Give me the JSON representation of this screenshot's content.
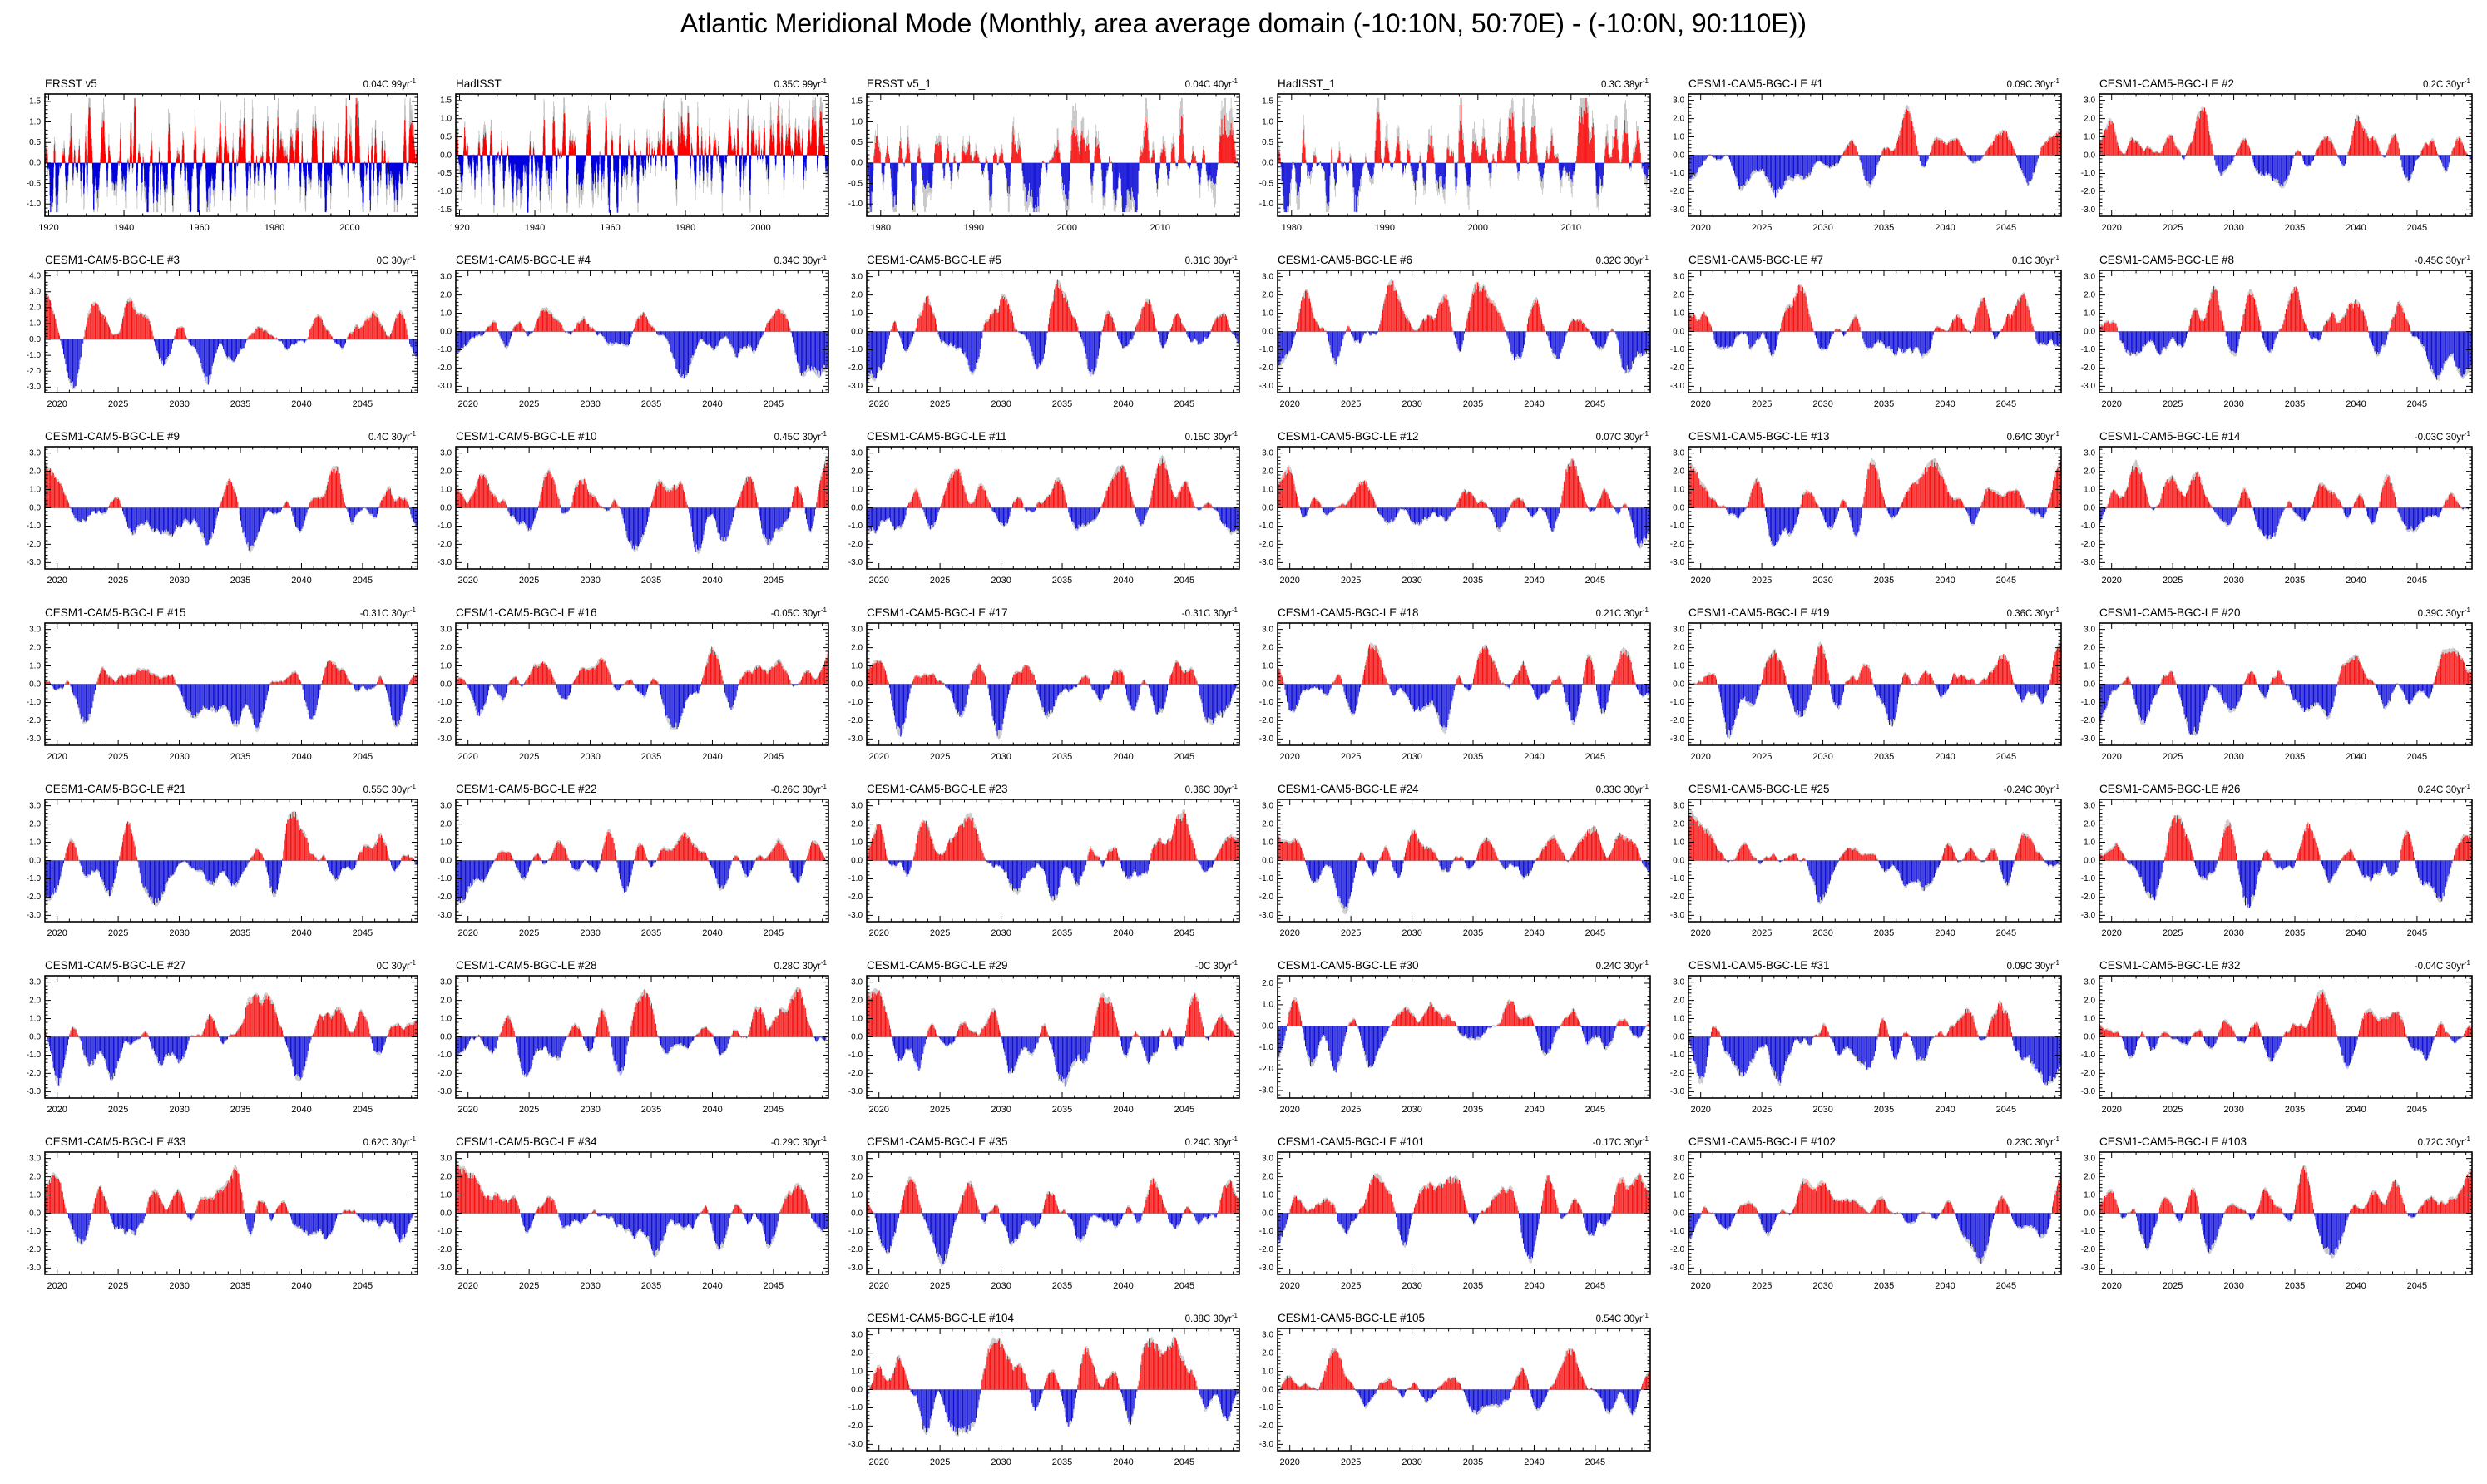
{
  "page_title": "Atlantic Meridional Mode (Monthly, area average domain (-10:10N, 50:70E) - (-10:0N, 90:110E))",
  "colors": {
    "positive": "#ff0000",
    "negative": "#0000dd",
    "envelope": "#bdbdbd",
    "axis": "#000000",
    "zero_line": "#9e9e9e",
    "text": "#000000"
  },
  "trend_sup": "-1",
  "chart_data": {
    "type": "bar",
    "subtype": "monthly-anomaly-bar-panels",
    "grid": {
      "columns": 6,
      "rows": 8
    },
    "x_axis_kinds": {
      "obs_long": {
        "xlim": [
          1919.0,
          2018.0
        ],
        "xticks": [
          1920,
          1940,
          1960,
          1980,
          2000
        ],
        "x_minor_step": 5
      },
      "obs_short": {
        "xlim": [
          1978.5,
          2018.5
        ],
        "xticks": [
          1980,
          1990,
          2000,
          2010
        ],
        "x_minor_step": 2
      },
      "model": {
        "xlim": [
          2019.0,
          2049.5
        ],
        "xticks": [
          2020,
          2025,
          2030,
          2035,
          2040,
          2045
        ],
        "x_minor_step": 1
      }
    },
    "y_axis_kinds": {
      "obs": {
        "ylim": [
          -1.3,
          1.68
        ],
        "yticks": [
          1.5,
          1.0,
          0.5,
          0.0,
          -0.5,
          -1.0
        ],
        "y_minor_step": 0.1
      },
      "obs_sym": {
        "ylim": [
          -1.68,
          1.68
        ],
        "yticks": [
          1.5,
          1.0,
          0.5,
          0.0,
          -0.5,
          -1.0,
          -1.5
        ],
        "y_minor_step": 0.1
      },
      "model": {
        "ylim": [
          -3.35,
          3.35
        ],
        "yticks": [
          3.0,
          2.0,
          1.0,
          0.0,
          -1.0,
          -2.0,
          -3.0
        ],
        "y_minor_step": 0.2
      },
      "model_hi": {
        "ylim": [
          -3.35,
          4.35
        ],
        "yticks": [
          4.0,
          3.0,
          2.0,
          1.0,
          0.0,
          -1.0,
          -2.0,
          -3.0
        ],
        "y_minor_step": 0.2
      },
      "model_lo": {
        "ylim": [
          -3.35,
          2.35
        ],
        "yticks": [
          2.0,
          1.0,
          0.0,
          -1.0,
          -2.0,
          -3.0
        ],
        "y_minor_step": 0.2
      }
    },
    "panels": [
      {
        "title": "ERSST v5",
        "trend": "0.04C 99yr",
        "trend_c": 0.04,
        "row": 0,
        "col": 0,
        "x": "obs_long",
        "y": "obs",
        "style": "obs",
        "seed": 101,
        "amp": 1.5
      },
      {
        "title": "HadISST",
        "trend": "0.35C 99yr",
        "trend_c": 0.35,
        "row": 0,
        "col": 1,
        "x": "obs_long",
        "y": "obs_sym",
        "style": "obs",
        "seed": 138,
        "amp": 1.5
      },
      {
        "title": "ERSST v5_1",
        "trend": "0.04C 40yr",
        "trend_c": 0.04,
        "row": 0,
        "col": 2,
        "x": "obs_short",
        "y": "obs",
        "style": "obs",
        "seed": 175,
        "amp": 1.5
      },
      {
        "title": "HadISST_1",
        "trend": "0.3C 38yr",
        "trend_c": 0.3,
        "row": 0,
        "col": 3,
        "x": "obs_short",
        "y": "obs",
        "style": "obs",
        "seed": 212,
        "amp": 1.45
      },
      {
        "title": "CESM1-CAM5-BGC-LE #1",
        "trend": "0.09C 30yr",
        "trend_c": 0.09,
        "row": 0,
        "col": 4,
        "x": "model",
        "y": "model",
        "style": "model",
        "seed": 249,
        "amp": 2.5
      },
      {
        "title": "CESM1-CAM5-BGC-LE #2",
        "trend": "0.2C 30yr",
        "trend_c": 0.2,
        "row": 0,
        "col": 5,
        "x": "model",
        "y": "model",
        "style": "model",
        "seed": 286,
        "amp": 2.5
      },
      {
        "title": "CESM1-CAM5-BGC-LE #3",
        "trend": "0C 30yr",
        "trend_c": 0.0,
        "row": 1,
        "col": 0,
        "x": "model",
        "y": "model_hi",
        "style": "model",
        "seed": 323,
        "amp": 2.9
      },
      {
        "title": "CESM1-CAM5-BGC-LE #4",
        "trend": "0.34C 30yr",
        "trend_c": 0.34,
        "row": 1,
        "col": 1,
        "x": "model",
        "y": "model",
        "style": "model",
        "seed": 360,
        "amp": 2.5
      },
      {
        "title": "CESM1-CAM5-BGC-LE #5",
        "trend": "0.31C 30yr",
        "trend_c": 0.31,
        "row": 1,
        "col": 2,
        "x": "model",
        "y": "model",
        "style": "model",
        "seed": 397,
        "amp": 2.6
      },
      {
        "title": "CESM1-CAM5-BGC-LE #6",
        "trend": "0.32C 30yr",
        "trend_c": 0.32,
        "row": 1,
        "col": 3,
        "x": "model",
        "y": "model",
        "style": "model",
        "seed": 434,
        "amp": 2.7
      },
      {
        "title": "CESM1-CAM5-BGC-LE #7",
        "trend": "0.1C 30yr",
        "trend_c": 0.1,
        "row": 1,
        "col": 4,
        "x": "model",
        "y": "model",
        "style": "model",
        "seed": 471,
        "amp": 2.4
      },
      {
        "title": "CESM1-CAM5-BGC-LE #8",
        "trend": "-0.45C 30yr",
        "trend_c": -0.45,
        "row": 1,
        "col": 5,
        "x": "model",
        "y": "model",
        "style": "model",
        "seed": 508,
        "amp": 2.3
      },
      {
        "title": "CESM1-CAM5-BGC-LE #9",
        "trend": "0.4C 30yr",
        "trend_c": 0.4,
        "row": 2,
        "col": 0,
        "x": "model",
        "y": "model",
        "style": "model",
        "seed": 545,
        "amp": 2.4
      },
      {
        "title": "CESM1-CAM5-BGC-LE #10",
        "trend": "0.45C 30yr",
        "trend_c": 0.45,
        "row": 2,
        "col": 1,
        "x": "model",
        "y": "model",
        "style": "model",
        "seed": 582,
        "amp": 2.4
      },
      {
        "title": "CESM1-CAM5-BGC-LE #11",
        "trend": "0.15C 30yr",
        "trend_c": 0.15,
        "row": 2,
        "col": 2,
        "x": "model",
        "y": "model",
        "style": "model",
        "seed": 619,
        "amp": 2.6
      },
      {
        "title": "CESM1-CAM5-BGC-LE #12",
        "trend": "0.07C 30yr",
        "trend_c": 0.07,
        "row": 2,
        "col": 3,
        "x": "model",
        "y": "model",
        "style": "model",
        "seed": 656,
        "amp": 2.5
      },
      {
        "title": "CESM1-CAM5-BGC-LE #13",
        "trend": "0.64C 30yr",
        "trend_c": 0.64,
        "row": 2,
        "col": 4,
        "x": "model",
        "y": "model",
        "style": "model",
        "seed": 693,
        "amp": 2.7
      },
      {
        "title": "CESM1-CAM5-BGC-LE #14",
        "trend": "-0.03C 30yr",
        "trend_c": -0.03,
        "row": 2,
        "col": 5,
        "x": "model",
        "y": "model",
        "style": "model",
        "seed": 730,
        "amp": 2.4
      },
      {
        "title": "CESM1-CAM5-BGC-LE #15",
        "trend": "-0.31C 30yr",
        "trend_c": -0.31,
        "row": 3,
        "col": 0,
        "x": "model",
        "y": "model",
        "style": "model",
        "seed": 767,
        "amp": 2.4
      },
      {
        "title": "CESM1-CAM5-BGC-LE #16",
        "trend": "-0.05C 30yr",
        "trend_c": -0.05,
        "row": 3,
        "col": 1,
        "x": "model",
        "y": "model",
        "style": "model",
        "seed": 804,
        "amp": 2.3
      },
      {
        "title": "CESM1-CAM5-BGC-LE #17",
        "trend": "-0.31C 30yr",
        "trend_c": -0.31,
        "row": 3,
        "col": 2,
        "x": "model",
        "y": "model",
        "style": "model",
        "seed": 841,
        "amp": 2.8
      },
      {
        "title": "CESM1-CAM5-BGC-LE #18",
        "trend": "0.21C 30yr",
        "trend_c": 0.21,
        "row": 3,
        "col": 3,
        "x": "model",
        "y": "model",
        "style": "model",
        "seed": 878,
        "amp": 2.5
      },
      {
        "title": "CESM1-CAM5-BGC-LE #19",
        "trend": "0.36C 30yr",
        "trend_c": 0.36,
        "row": 3,
        "col": 4,
        "x": "model",
        "y": "model",
        "style": "model",
        "seed": 915,
        "amp": 2.6
      },
      {
        "title": "CESM1-CAM5-BGC-LE #20",
        "trend": "0.39C 30yr",
        "trend_c": 0.39,
        "row": 3,
        "col": 5,
        "x": "model",
        "y": "model",
        "style": "model",
        "seed": 952,
        "amp": 2.5
      },
      {
        "title": "CESM1-CAM5-BGC-LE #21",
        "trend": "0.55C 30yr",
        "trend_c": 0.55,
        "row": 4,
        "col": 0,
        "x": "model",
        "y": "model",
        "style": "model",
        "seed": 989,
        "amp": 2.4
      },
      {
        "title": "CESM1-CAM5-BGC-LE #22",
        "trend": "-0.26C 30yr",
        "trend_c": -0.26,
        "row": 4,
        "col": 1,
        "x": "model",
        "y": "model",
        "style": "model",
        "seed": 1026,
        "amp": 2.3
      },
      {
        "title": "CESM1-CAM5-BGC-LE #23",
        "trend": "0.36C 30yr",
        "trend_c": 0.36,
        "row": 4,
        "col": 2,
        "x": "model",
        "y": "model",
        "style": "model",
        "seed": 1063,
        "amp": 2.5
      },
      {
        "title": "CESM1-CAM5-BGC-LE #24",
        "trend": "0.33C 30yr",
        "trend_c": 0.33,
        "row": 4,
        "col": 3,
        "x": "model",
        "y": "model",
        "style": "model",
        "seed": 1100,
        "amp": 2.6
      },
      {
        "title": "CESM1-CAM5-BGC-LE #25",
        "trend": "-0.24C 30yr",
        "trend_c": -0.24,
        "row": 4,
        "col": 4,
        "x": "model",
        "y": "model",
        "style": "model",
        "seed": 1137,
        "amp": 2.5
      },
      {
        "title": "CESM1-CAM5-BGC-LE #26",
        "trend": "0.24C 30yr",
        "trend_c": 0.24,
        "row": 4,
        "col": 5,
        "x": "model",
        "y": "model",
        "style": "model",
        "seed": 1174,
        "amp": 2.4
      },
      {
        "title": "CESM1-CAM5-BGC-LE #27",
        "trend": "0C 30yr",
        "trend_c": 0.0,
        "row": 5,
        "col": 0,
        "x": "model",
        "y": "model",
        "style": "model",
        "seed": 1211,
        "amp": 2.5
      },
      {
        "title": "CESM1-CAM5-BGC-LE #28",
        "trend": "0.28C 30yr",
        "trend_c": 0.28,
        "row": 5,
        "col": 1,
        "x": "model",
        "y": "model",
        "style": "model",
        "seed": 1248,
        "amp": 2.4
      },
      {
        "title": "CESM1-CAM5-BGC-LE #29",
        "trend": "-0C 30yr",
        "trend_c": 0.0,
        "row": 5,
        "col": 2,
        "x": "model",
        "y": "model",
        "style": "model",
        "seed": 1285,
        "amp": 2.5
      },
      {
        "title": "CESM1-CAM5-BGC-LE #30",
        "trend": "0.24C 30yr",
        "trend_c": 0.24,
        "row": 5,
        "col": 3,
        "x": "model",
        "y": "model_lo",
        "style": "model",
        "seed": 1322,
        "amp": 1.9
      },
      {
        "title": "CESM1-CAM5-BGC-LE #31",
        "trend": "0.09C 30yr",
        "trend_c": 0.09,
        "row": 5,
        "col": 4,
        "x": "model",
        "y": "model",
        "style": "model",
        "seed": 1359,
        "amp": 2.5
      },
      {
        "title": "CESM1-CAM5-BGC-LE #32",
        "trend": "-0.04C 30yr",
        "trend_c": -0.04,
        "row": 5,
        "col": 5,
        "x": "model",
        "y": "model",
        "style": "model",
        "seed": 1396,
        "amp": 2.4
      },
      {
        "title": "CESM1-CAM5-BGC-LE #33",
        "trend": "0.62C 30yr",
        "trend_c": 0.62,
        "row": 6,
        "col": 0,
        "x": "model",
        "y": "model",
        "style": "model",
        "seed": 1433,
        "amp": 2.4
      },
      {
        "title": "CESM1-CAM5-BGC-LE #34",
        "trend": "-0.29C 30yr",
        "trend_c": -0.29,
        "row": 6,
        "col": 1,
        "x": "model",
        "y": "model",
        "style": "model",
        "seed": 1470,
        "amp": 2.5
      },
      {
        "title": "CESM1-CAM5-BGC-LE #35",
        "trend": "0.24C 30yr",
        "trend_c": 0.24,
        "row": 6,
        "col": 2,
        "x": "model",
        "y": "model",
        "style": "model",
        "seed": 1507,
        "amp": 2.6
      },
      {
        "title": "CESM1-CAM5-BGC-LE #101",
        "trend": "-0.17C 30yr",
        "trend_c": -0.17,
        "row": 6,
        "col": 3,
        "x": "model",
        "y": "model",
        "style": "model",
        "seed": 1544,
        "amp": 2.5
      },
      {
        "title": "CESM1-CAM5-BGC-LE #102",
        "trend": "0.23C 30yr",
        "trend_c": 0.23,
        "row": 6,
        "col": 4,
        "x": "model",
        "y": "model",
        "style": "model",
        "seed": 1581,
        "amp": 2.6
      },
      {
        "title": "CESM1-CAM5-BGC-LE #103",
        "trend": "0.72C 30yr",
        "trend_c": 0.72,
        "row": 6,
        "col": 5,
        "x": "model",
        "y": "model",
        "style": "model",
        "seed": 1618,
        "amp": 2.4
      },
      {
        "title": "CESM1-CAM5-BGC-LE #104",
        "trend": "0.38C 30yr",
        "trend_c": 0.38,
        "row": 7,
        "col": 2,
        "x": "model",
        "y": "model",
        "style": "model",
        "seed": 1655,
        "amp": 2.7
      },
      {
        "title": "CESM1-CAM5-BGC-LE #105",
        "trend": "0.54C 30yr",
        "trend_c": 0.54,
        "row": 7,
        "col": 3,
        "x": "model",
        "y": "model",
        "style": "model",
        "seed": 1692,
        "amp": 2.3
      }
    ]
  }
}
